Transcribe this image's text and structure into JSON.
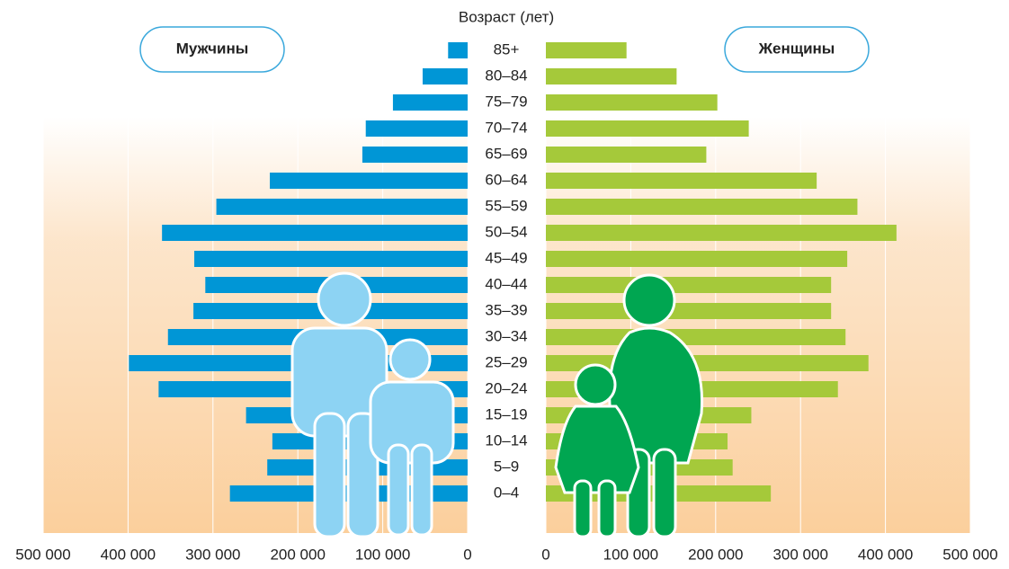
{
  "chart_data": {
    "type": "pyramid",
    "title": "Возраст (лет)",
    "categories": [
      "85+",
      "80–84",
      "75–79",
      "70–74",
      "65–69",
      "60–64",
      "55–59",
      "50–54",
      "45–49",
      "40–44",
      "35–39",
      "30–34",
      "25–29",
      "20–24",
      "15–19",
      "10–14",
      "5–9",
      "0–4"
    ],
    "series": [
      {
        "name": "Мужчины",
        "color": "#0096d6",
        "values": [
          23000,
          53000,
          88000,
          120000,
          124000,
          233000,
          296000,
          360000,
          322000,
          309000,
          323000,
          353000,
          399000,
          364000,
          261000,
          230000,
          236000,
          280000
        ]
      },
      {
        "name": "Женщины",
        "color": "#a5c93a",
        "values": [
          95000,
          154000,
          202000,
          239000,
          189000,
          319000,
          367000,
          413000,
          355000,
          336000,
          336000,
          353000,
          380000,
          344000,
          242000,
          214000,
          220000,
          265000
        ]
      }
    ],
    "xlim": [
      0,
      500000
    ],
    "xticks": [
      0,
      {
        "value": 100000,
        "label": "100 000"
      },
      {
        "value": 200000,
        "label": "200 000"
      },
      {
        "value": 300000,
        "label": "300 000"
      },
      {
        "value": 400000,
        "label": "400 000"
      },
      {
        "value": 500000,
        "label": "500 000"
      }
    ],
    "grid": true
  }
}
